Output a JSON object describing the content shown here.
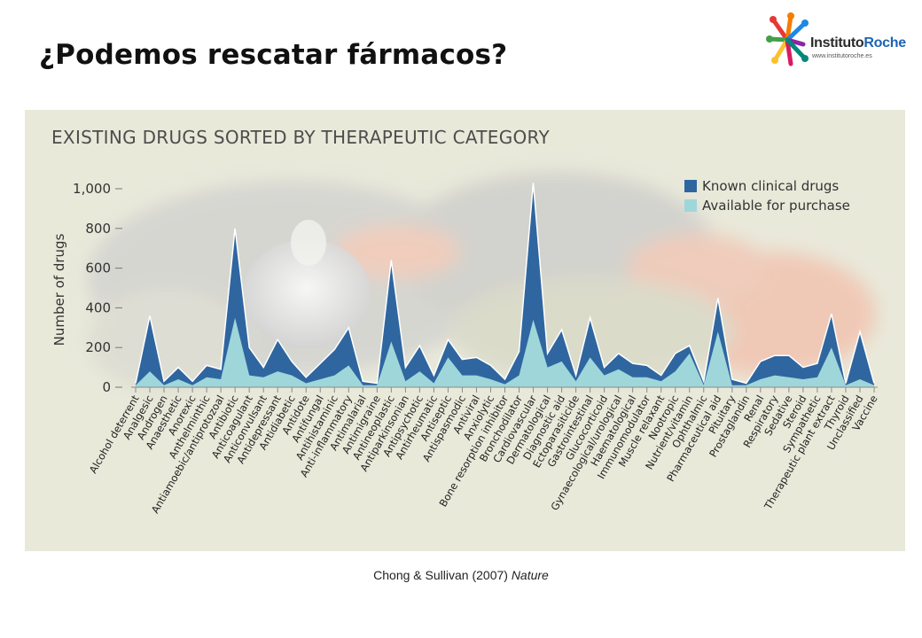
{
  "slide": {
    "title": "¿Podemos rescatar fármacos?",
    "logo": {
      "name_part1": "Instituto",
      "name_part2": "Roche",
      "url": "www.institutoroche.es"
    },
    "caption": {
      "authors": "Chong & Sullivan",
      "year": "(2007)",
      "journal": "Nature"
    }
  },
  "colors": {
    "known": "#2f66a0",
    "available": "#9fd6da",
    "figure_bg": "#e9e9da"
  },
  "chart_data": {
    "type": "area",
    "title": "EXISTING DRUGS SORTED BY THERAPEUTIC CATEGORY",
    "ylabel": "Number of drugs",
    "xlabel": "",
    "ylim": [
      0,
      1000
    ],
    "yticks": [
      0,
      200,
      400,
      600,
      800,
      1000
    ],
    "ytick_labels": [
      "0",
      "200",
      "400",
      "600",
      "800",
      "1,000"
    ],
    "legend_position": "top-right",
    "categories": [
      "Alcohol deterrent",
      "Analgesic",
      "Androgen",
      "Anaesthetic",
      "Anorexic",
      "Anthelminthic",
      "Antiamoebic/antiprotozoal",
      "Antibiotic",
      "Anticoagulant",
      "Anticonvulsant",
      "Antidepressant",
      "Antidiabetic",
      "Antidote",
      "Antifungal",
      "Antihistaminic",
      "Anti-inflammatory",
      "Antimalarial",
      "Antimigraine",
      "Antineoplastic",
      "Antiparkinsonian",
      "Antipsychotic",
      "Antirheumatic",
      "Antiseptic",
      "Antispasmodic",
      "Antiviral",
      "Anxiolytic",
      "Bone resorption inhibitor",
      "Bronchodilator",
      "Cardiovascular",
      "Dermatological",
      "Diagnostic aid",
      "Ectoparasiticide",
      "Gastrointestinal",
      "Glucocorticoid",
      "Gynaecological/urological",
      "Haematological",
      "Immunomodulator",
      "Muscle relaxant",
      "Nootropic",
      "Nutrient/vitamin",
      "Ophthalmic",
      "Pharmaceutical aid",
      "Pituitary",
      "Prostaglandin",
      "Renal",
      "Respiratory",
      "Sedative",
      "Steroid",
      "Sympathetic",
      "Therapeutic plant extract",
      "Thyroid",
      "Unclassified",
      "Vaccine"
    ],
    "series": [
      {
        "name": "Known clinical drugs",
        "values": [
          20,
          360,
          30,
          100,
          30,
          110,
          90,
          800,
          200,
          100,
          240,
          130,
          50,
          120,
          190,
          300,
          30,
          20,
          640,
          100,
          210,
          60,
          240,
          140,
          150,
          110,
          40,
          180,
          1030,
          170,
          290,
          60,
          350,
          100,
          170,
          120,
          110,
          60,
          170,
          210,
          30,
          450,
          40,
          20,
          130,
          160,
          160,
          100,
          120,
          370,
          20,
          280,
          20
        ]
      },
      {
        "name": "Available for purchase",
        "values": [
          10,
          80,
          10,
          40,
          10,
          50,
          40,
          350,
          60,
          50,
          80,
          60,
          20,
          40,
          60,
          110,
          10,
          10,
          230,
          30,
          80,
          20,
          150,
          60,
          60,
          40,
          15,
          60,
          340,
          100,
          130,
          30,
          150,
          60,
          90,
          50,
          50,
          30,
          80,
          170,
          10,
          280,
          10,
          10,
          40,
          60,
          50,
          40,
          50,
          200,
          10,
          40,
          10
        ]
      }
    ]
  }
}
